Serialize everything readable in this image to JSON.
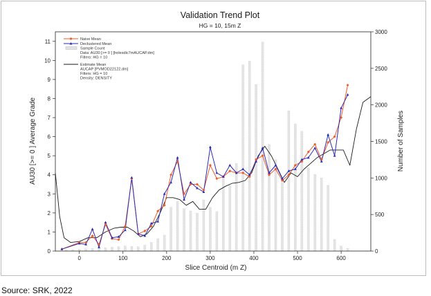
{
  "chart_data": {
    "type": "line",
    "title": "Validation Trend Plot",
    "subtitle": "HG = 10, 15m Z",
    "xlabel": "Slice Centroid (m Z)",
    "ylabel": "AU30 [>= 0 ] Average Grade",
    "y2label": "Number of Samples",
    "xlim": [
      -55,
      668
    ],
    "ylim": [
      0,
      11.5
    ],
    "y2lim": [
      0,
      3000
    ],
    "xticks": [
      "0",
      "100",
      "200",
      "300",
      "400",
      "500",
      "600"
    ],
    "yticks": [
      "0",
      "1",
      "2",
      "3",
      "4",
      "5",
      "6",
      "7",
      "8",
      "9",
      "10",
      "11"
    ],
    "y2ticks": [
      "0",
      "500",
      "1000",
      "1500",
      "2000",
      "2500",
      "3000"
    ],
    "grid": false,
    "legend": {
      "placement": "top-left",
      "items": [
        {
          "label": "Naive Mean",
          "color": "#f05a28",
          "marker": "diamond"
        },
        {
          "label": "Declustered Mean",
          "color": "#2b2ab5",
          "marker": "triangle"
        },
        {
          "label": "Sample Count",
          "color": "#cfcfcf",
          "marker": "bar"
        }
      ],
      "notes_1": [
        "Data: AU30 [>= 0 ] [holesdic7mAUCAP.dm]",
        "Filters: HG = 10"
      ],
      "estimate_label": "Estimate Mean",
      "notes_2": [
        "AUCAP [PVMOD22122.dm]",
        "Filters: HG = 10",
        "Density: DENSITY"
      ]
    },
    "bars": {
      "name": "Sample Count",
      "x": [
        -30,
        -15,
        0,
        15,
        30,
        45,
        60,
        75,
        90,
        105,
        120,
        135,
        150,
        165,
        180,
        195,
        210,
        225,
        240,
        255,
        270,
        285,
        300,
        315,
        330,
        345,
        360,
        375,
        390,
        405,
        420,
        435,
        450,
        465,
        480,
        495,
        510,
        525,
        540,
        555,
        570,
        585,
        600,
        615
      ],
      "values": [
        15,
        20,
        25,
        30,
        35,
        40,
        45,
        55,
        60,
        70,
        65,
        60,
        80,
        120,
        170,
        220,
        600,
        680,
        580,
        550,
        520,
        700,
        600,
        540,
        1000,
        900,
        1200,
        2550,
        2600,
        2280,
        2860,
        1460,
        1250,
        940,
        1920,
        1740,
        1640,
        1140,
        1050,
        1000,
        900,
        160,
        70,
        35
      ]
    },
    "series": [
      {
        "name": "Naive Mean",
        "color": "#f05a28",
        "x": [
          -40,
          0,
          15,
          30,
          45,
          60,
          75,
          90,
          105,
          120,
          135,
          150,
          165,
          180,
          195,
          210,
          225,
          240,
          255,
          270,
          285,
          300,
          315,
          330,
          345,
          360,
          375,
          390,
          405,
          420,
          435,
          450,
          465,
          480,
          495,
          510,
          525,
          540,
          555,
          570,
          585,
          600,
          615
        ],
        "values": [
          0.1,
          0.45,
          0.45,
          0.8,
          0.35,
          1.4,
          0.65,
          0.6,
          1.3,
          3.8,
          0.9,
          1.05,
          1.3,
          2.1,
          2.4,
          4.0,
          4.7,
          3.0,
          3.5,
          3.5,
          3.2,
          4.5,
          3.8,
          3.9,
          4.2,
          4.1,
          4.1,
          3.9,
          4.8,
          5.0,
          4.0,
          4.3,
          3.7,
          4.0,
          4.5,
          4.7,
          5.2,
          5.6,
          4.8,
          5.7,
          6.0,
          7.0,
          8.7
        ]
      },
      {
        "name": "Declustered Mean",
        "color": "#2b2ab5",
        "x": [
          -40,
          0,
          15,
          30,
          45,
          60,
          75,
          90,
          105,
          120,
          135,
          150,
          165,
          180,
          195,
          210,
          225,
          240,
          255,
          270,
          285,
          300,
          315,
          330,
          345,
          360,
          375,
          390,
          405,
          420,
          435,
          450,
          465,
          480,
          495,
          510,
          525,
          540,
          555,
          570,
          585,
          600,
          615
        ],
        "values": [
          0.1,
          0.4,
          0.35,
          1.15,
          0.2,
          1.5,
          0.7,
          0.75,
          1.1,
          3.85,
          0.9,
          0.8,
          1.45,
          1.55,
          3.0,
          3.6,
          4.9,
          2.7,
          3.6,
          3.3,
          3.1,
          5.45,
          4.1,
          3.9,
          4.5,
          4.1,
          4.3,
          4.0,
          4.7,
          5.4,
          4.1,
          4.5,
          3.8,
          4.2,
          4.3,
          4.8,
          4.9,
          5.4,
          4.7,
          6.1,
          5.0,
          7.5,
          8.2
        ]
      },
      {
        "name": "Estimate Mean",
        "color": "#1a1a1a",
        "x": [
          -55,
          -45,
          -35,
          -20,
          0,
          20,
          40,
          60,
          80,
          95,
          110,
          125,
          140,
          155,
          170,
          185,
          200,
          215,
          230,
          245,
          260,
          275,
          290,
          305,
          320,
          335,
          350,
          365,
          380,
          395,
          410,
          425,
          440,
          455,
          470,
          485,
          500,
          515,
          530,
          545,
          560,
          575,
          590,
          605,
          620,
          635,
          650,
          668
        ],
        "values": [
          4.1,
          1.8,
          0.7,
          0.45,
          0.5,
          0.7,
          0.7,
          1.0,
          1.2,
          1.25,
          1.25,
          1.05,
          0.75,
          0.9,
          1.3,
          2.0,
          2.8,
          2.8,
          2.7,
          2.4,
          2.6,
          2.2,
          2.2,
          2.8,
          3.2,
          3.4,
          3.55,
          3.6,
          3.7,
          4.1,
          5.0,
          5.5,
          5.0,
          4.3,
          3.6,
          4.1,
          3.9,
          4.3,
          4.6,
          4.9,
          5.1,
          5.3,
          5.3,
          5.3,
          4.5,
          6.4,
          7.8,
          8.1
        ]
      }
    ]
  },
  "source": "Source: SRK, 2022"
}
